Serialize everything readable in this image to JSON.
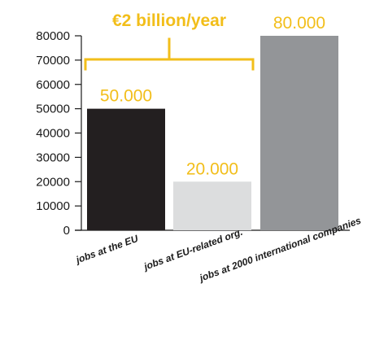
{
  "chart_data": {
    "type": "bar",
    "categories": [
      "jobs at the EU",
      "jobs at EU-related org.",
      "jobs at 2000 international companies"
    ],
    "values": [
      50000,
      20000,
      80000
    ],
    "value_labels": [
      "50.000",
      "20.000",
      "80.000"
    ],
    "bar_colors": [
      "#231f20",
      "#dcddde",
      "#939598"
    ],
    "ylim": [
      0,
      80000
    ],
    "yticks": [
      0,
      10000,
      20000,
      30000,
      40000,
      50000,
      60000,
      70000,
      80000
    ],
    "grid": false,
    "annotation": {
      "text": "€2 billion/year",
      "spans_categories": [
        0,
        1
      ],
      "color": "#f2be1a"
    },
    "label_color": "#f2be1a",
    "xlabel": "",
    "ylabel": "",
    "title": ""
  }
}
